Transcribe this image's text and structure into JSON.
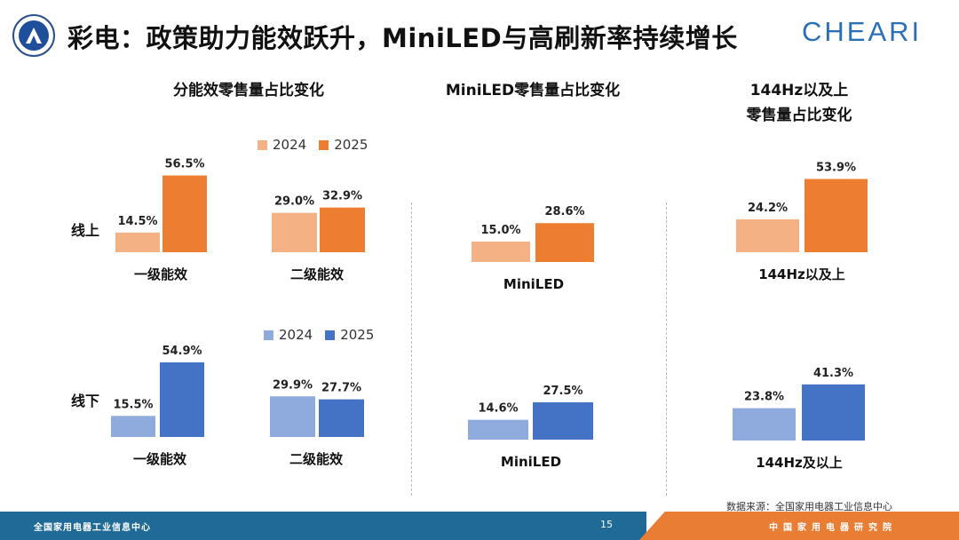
{
  "header": {
    "title": "彩电：政策助力能效跃升，MiniLED与高刷新率持续增长",
    "brand": "CHEARI"
  },
  "sections": {
    "energy": "分能效零售量占比变化",
    "miniled": "MiniLED零售量占比变化",
    "hz_line1": "144Hz以及上",
    "hz_line2": "零售量占比变化"
  },
  "rows": {
    "online": "线上",
    "offline": "线下"
  },
  "legend_online": {
    "y2024": "2024",
    "y2025": "2025"
  },
  "legend_offline": {
    "y2024": "2024",
    "y2025": "2025"
  },
  "colors": {
    "online_2024": "#f4b183",
    "online_2025": "#ed7d31",
    "offline_2024": "#8faadc",
    "offline_2025": "#4472c4"
  },
  "chart_data": [
    {
      "type": "bar",
      "channel": "线上",
      "category": "一级能效",
      "series": [
        {
          "name": "2024",
          "value": 14.5
        },
        {
          "name": "2025",
          "value": 56.5
        }
      ]
    },
    {
      "type": "bar",
      "channel": "线上",
      "category": "二级能效",
      "series": [
        {
          "name": "2024",
          "value": 29.0
        },
        {
          "name": "2025",
          "value": 32.9
        }
      ]
    },
    {
      "type": "bar",
      "channel": "线上",
      "category": "MiniLED",
      "series": [
        {
          "name": "2024",
          "value": 15.0
        },
        {
          "name": "2025",
          "value": 28.6
        }
      ]
    },
    {
      "type": "bar",
      "channel": "线上",
      "category": "144Hz以及上",
      "series": [
        {
          "name": "2024",
          "value": 24.2
        },
        {
          "name": "2025",
          "value": 53.9
        }
      ]
    },
    {
      "type": "bar",
      "channel": "线下",
      "category": "一级能效",
      "series": [
        {
          "name": "2024",
          "value": 15.5
        },
        {
          "name": "2025",
          "value": 54.9
        }
      ]
    },
    {
      "type": "bar",
      "channel": "线下",
      "category": "二级能效",
      "series": [
        {
          "name": "2024",
          "value": 29.9
        },
        {
          "name": "2025",
          "value": 27.7
        }
      ]
    },
    {
      "type": "bar",
      "channel": "线下",
      "category": "MiniLED",
      "series": [
        {
          "name": "2024",
          "value": 14.6
        },
        {
          "name": "2025",
          "value": 27.5
        }
      ]
    },
    {
      "type": "bar",
      "channel": "线下",
      "category": "144Hz及以上",
      "series": [
        {
          "name": "2024",
          "value": 23.8
        },
        {
          "name": "2025",
          "value": 41.3
        }
      ]
    }
  ],
  "source": "数据来源：全国家用电器工业信息中心",
  "footer": {
    "left": "全国家用电器工业信息中心",
    "page": "15",
    "right": "中国家用电器研究院"
  }
}
